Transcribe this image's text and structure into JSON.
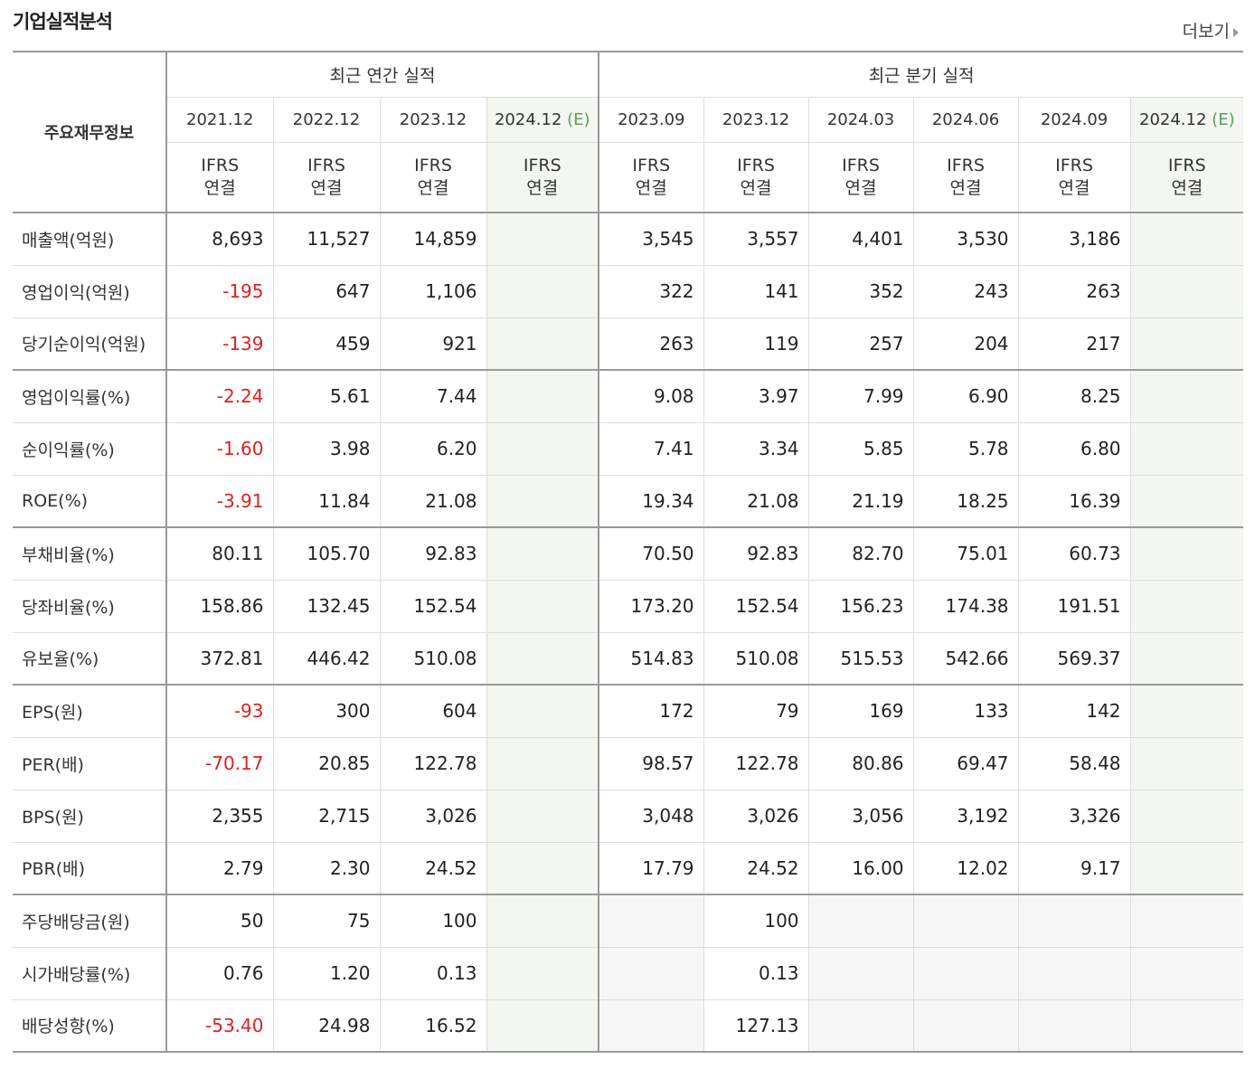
{
  "header": {
    "title": "기업실적분석",
    "more_label": "더보기"
  },
  "table": {
    "corner_label": "주요재무정보",
    "group_annual": "최근 연간 실적",
    "group_quarter": "최근 분기 실적",
    "periods": [
      "2021.12",
      "2022.12",
      "2023.12",
      "2024.12",
      "2023.09",
      "2023.12",
      "2024.03",
      "2024.06",
      "2024.09",
      "2024.12"
    ],
    "estimate_mark": "(E)",
    "ifrs_top": "IFRS",
    "ifrs_bottom": "연결",
    "rows": [
      {
        "label": "매출액(억원)",
        "values": [
          "8,693",
          "11,527",
          "14,859",
          "",
          "3,545",
          "3,557",
          "4,401",
          "3,530",
          "3,186",
          ""
        ]
      },
      {
        "label": "영업이익(억원)",
        "values": [
          "-195",
          "647",
          "1,106",
          "",
          "322",
          "141",
          "352",
          "243",
          "263",
          ""
        ]
      },
      {
        "label": "당기순이익(억원)",
        "values": [
          "-139",
          "459",
          "921",
          "",
          "263",
          "119",
          "257",
          "204",
          "217",
          ""
        ]
      },
      {
        "label": "영업이익률(%)",
        "values": [
          "-2.24",
          "5.61",
          "7.44",
          "",
          "9.08",
          "3.97",
          "7.99",
          "6.90",
          "8.25",
          ""
        ]
      },
      {
        "label": "순이익률(%)",
        "values": [
          "-1.60",
          "3.98",
          "6.20",
          "",
          "7.41",
          "3.34",
          "5.85",
          "5.78",
          "6.80",
          ""
        ]
      },
      {
        "label": "ROE(%)",
        "values": [
          "-3.91",
          "11.84",
          "21.08",
          "",
          "19.34",
          "21.08",
          "21.19",
          "18.25",
          "16.39",
          ""
        ]
      },
      {
        "label": "부채비율(%)",
        "values": [
          "80.11",
          "105.70",
          "92.83",
          "",
          "70.50",
          "92.83",
          "82.70",
          "75.01",
          "60.73",
          ""
        ]
      },
      {
        "label": "당좌비율(%)",
        "values": [
          "158.86",
          "132.45",
          "152.54",
          "",
          "173.20",
          "152.54",
          "156.23",
          "174.38",
          "191.51",
          ""
        ]
      },
      {
        "label": "유보율(%)",
        "values": [
          "372.81",
          "446.42",
          "510.08",
          "",
          "514.83",
          "510.08",
          "515.53",
          "542.66",
          "569.37",
          ""
        ]
      },
      {
        "label": "EPS(원)",
        "values": [
          "-93",
          "300",
          "604",
          "",
          "172",
          "79",
          "169",
          "133",
          "142",
          ""
        ]
      },
      {
        "label": "PER(배)",
        "values": [
          "-70.17",
          "20.85",
          "122.78",
          "",
          "98.57",
          "122.78",
          "80.86",
          "69.47",
          "58.48",
          ""
        ]
      },
      {
        "label": "BPS(원)",
        "values": [
          "2,355",
          "2,715",
          "3,026",
          "",
          "3,048",
          "3,026",
          "3,056",
          "3,192",
          "3,326",
          ""
        ]
      },
      {
        "label": "PBR(배)",
        "values": [
          "2.79",
          "2.30",
          "24.52",
          "",
          "17.79",
          "24.52",
          "16.00",
          "12.02",
          "9.17",
          ""
        ]
      },
      {
        "label": "주당배당금(원)",
        "values": [
          "50",
          "75",
          "100",
          "",
          "",
          "100",
          "",
          "",
          "",
          ""
        ]
      },
      {
        "label": "시가배당률(%)",
        "values": [
          "0.76",
          "1.20",
          "0.13",
          "",
          "",
          "0.13",
          "",
          "",
          "",
          ""
        ]
      },
      {
        "label": "배당성향(%)",
        "values": [
          "-53.40",
          "24.98",
          "16.52",
          "",
          "",
          "127.13",
          "",
          "",
          "",
          ""
        ]
      }
    ]
  }
}
